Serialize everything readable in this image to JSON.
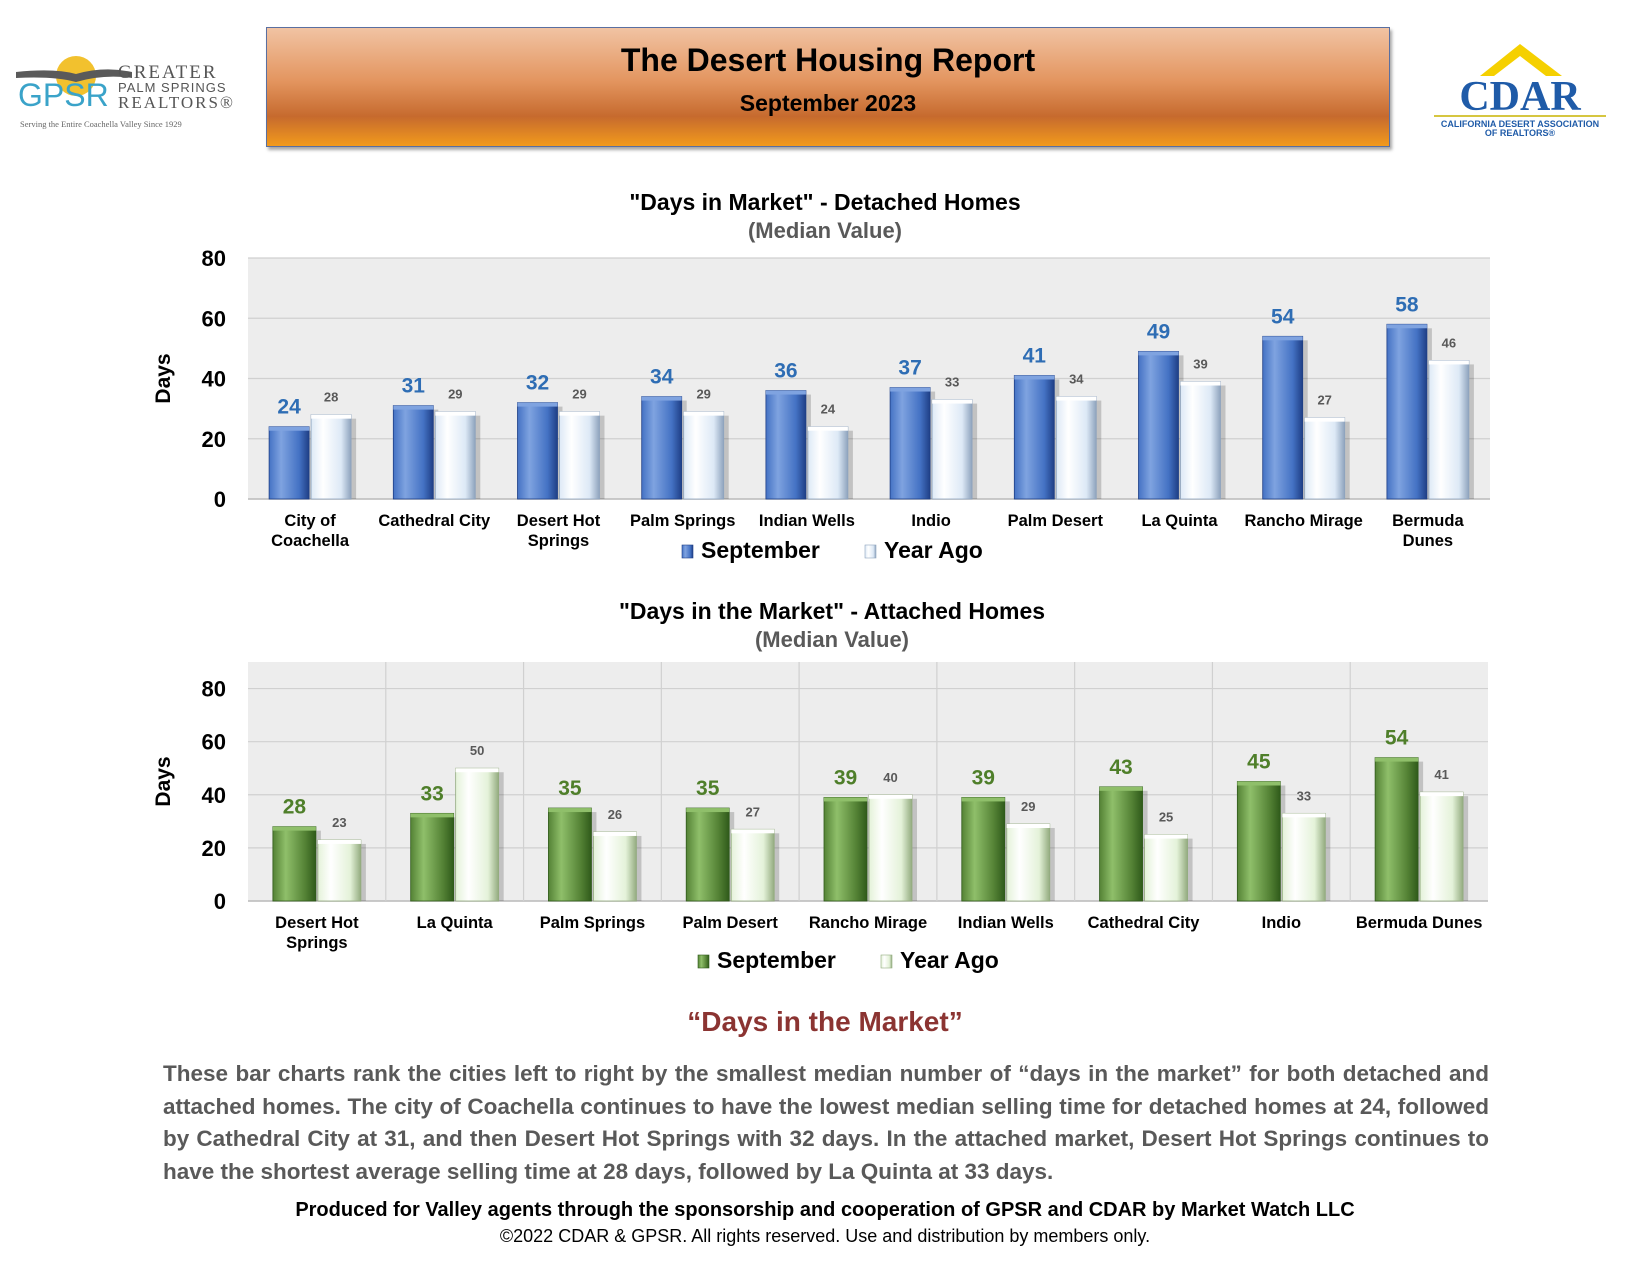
{
  "header": {
    "title": "The Desert Housing Report",
    "subtitle": "September 2023"
  },
  "logos": {
    "gpsr": {
      "mark": "GPSR",
      "line1": "GREATER",
      "line2": "PALM SPRINGS",
      "line3": "REALTORS®",
      "tagline": "Serving the Entire Coachella Valley Since 1929"
    },
    "cdar": {
      "mark": "CDAR",
      "line1": "CALIFORNIA DESERT ASSOCIATION",
      "line2": "OF REALTORS®"
    }
  },
  "colors": {
    "detached_current": "#4472c4",
    "detached_label": "#2e6db4",
    "attached_current": "#548235",
    "attached_label": "#4f7f2a",
    "year_ago_blue": "#dde9f6",
    "year_ago_green": "#e4f2d9",
    "section_title": "#8b3432",
    "body_text": "#595959"
  },
  "chart_data": [
    {
      "type": "bar",
      "title": "\"Days in Market\" - Detached Homes",
      "subtitle": "(Median Value)",
      "ylabel": "Days",
      "xlabel": "",
      "ylim": [
        0,
        80
      ],
      "yticks": [
        0,
        20,
        40,
        60,
        80
      ],
      "grid": true,
      "legend": "bottom",
      "categories": [
        "City of Coachella",
        "Cathedral City",
        "Desert Hot Springs",
        "Palm Springs",
        "Indian Wells",
        "Indio",
        "Palm Desert",
        "La Quinta",
        "Rancho Mirage",
        "Bermuda Dunes"
      ],
      "series": [
        {
          "name": "September",
          "values": [
            24,
            31,
            32,
            34,
            36,
            37,
            41,
            49,
            54,
            58
          ]
        },
        {
          "name": "Year Ago",
          "values": [
            28,
            29,
            29,
            29,
            24,
            33,
            34,
            39,
            27,
            46
          ]
        }
      ]
    },
    {
      "type": "bar",
      "title": "\"Days in the Market\" - Attached Homes",
      "subtitle": "(Median Value)",
      "ylabel": "Days",
      "xlabel": "",
      "ylim": [
        0,
        90
      ],
      "yticks": [
        0,
        20,
        40,
        60,
        80
      ],
      "grid": true,
      "legend": "bottom",
      "categories": [
        "Desert Hot Springs",
        "La Quinta",
        "Palm Springs",
        "Palm Desert",
        "Rancho Mirage",
        "Indian Wells",
        "Cathedral City",
        "Indio",
        "Bermuda Dunes"
      ],
      "series": [
        {
          "name": "September",
          "values": [
            28,
            33,
            35,
            35,
            39,
            39,
            43,
            45,
            54
          ]
        },
        {
          "name": "Year Ago",
          "values": [
            23,
            50,
            26,
            27,
            40,
            29,
            25,
            33,
            41
          ]
        }
      ]
    }
  ],
  "section": {
    "title": "“Days in the Market”",
    "body": "These bar charts rank the cities left to right by the smallest median number of “days in the market” for both detached and attached homes. The city of Coachella continues to have the lowest median selling time for detached homes at 24, followed by Cathedral City at 31, and then Desert Hot Springs with 32 days. In the attached market, Desert Hot Springs continues to have the shortest average selling time at 28 days, followed by La Quinta at 33 days."
  },
  "footer": {
    "produced_by": "Produced for Valley agents through the sponsorship and cooperation of GPSR and CDAR by Market Watch LLC",
    "copyright": "©2022 CDAR & GPSR.  All rights reserved.  Use and distribution by members only."
  }
}
